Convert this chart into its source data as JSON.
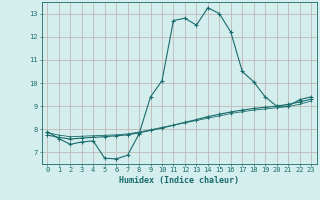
{
  "xlabel": "Humidex (Indice chaleur)",
  "background_color": "#d4eeee",
  "grid_color": "#c0b8b8",
  "line_color": "#1a6b6b",
  "xlim": [
    -0.5,
    23.5
  ],
  "ylim": [
    6.5,
    13.5
  ],
  "xticks": [
    0,
    1,
    2,
    3,
    4,
    5,
    6,
    7,
    8,
    9,
    10,
    11,
    12,
    13,
    14,
    15,
    16,
    17,
    18,
    19,
    20,
    21,
    22,
    23
  ],
  "yticks": [
    7,
    8,
    9,
    10,
    11,
    12,
    13
  ],
  "curve1_x": [
    0,
    1,
    2,
    3,
    4,
    5,
    6,
    7,
    8,
    9,
    10,
    11,
    12,
    13,
    14,
    15,
    16,
    17,
    18,
    19,
    20,
    21,
    22,
    23
  ],
  "curve1_y": [
    7.9,
    7.6,
    7.35,
    7.45,
    7.5,
    6.75,
    6.72,
    6.88,
    7.8,
    9.4,
    10.1,
    12.7,
    12.8,
    12.5,
    13.25,
    13.0,
    12.2,
    10.5,
    10.05,
    9.4,
    9.0,
    9.0,
    9.28,
    9.4
  ],
  "curve2_x": [
    0,
    1,
    2,
    3,
    4,
    5,
    6,
    7,
    8,
    9,
    10,
    11,
    12,
    13,
    14,
    15,
    16,
    17,
    18,
    19,
    20,
    21,
    22,
    23
  ],
  "curve2_y": [
    7.75,
    7.65,
    7.58,
    7.62,
    7.65,
    7.68,
    7.72,
    7.76,
    7.85,
    7.95,
    8.05,
    8.18,
    8.3,
    8.42,
    8.55,
    8.65,
    8.75,
    8.83,
    8.9,
    8.95,
    9.0,
    9.08,
    9.18,
    9.3
  ],
  "curve3_x": [
    0,
    1,
    2,
    3,
    4,
    5,
    6,
    7,
    8,
    9,
    10,
    11,
    12,
    13,
    14,
    15,
    16,
    17,
    18,
    19,
    20,
    21,
    22,
    23
  ],
  "curve3_y": [
    7.85,
    7.75,
    7.68,
    7.7,
    7.72,
    7.74,
    7.76,
    7.8,
    7.88,
    7.98,
    8.08,
    8.18,
    8.28,
    8.38,
    8.48,
    8.58,
    8.68,
    8.76,
    8.83,
    8.88,
    8.93,
    8.98,
    9.08,
    9.22
  ]
}
